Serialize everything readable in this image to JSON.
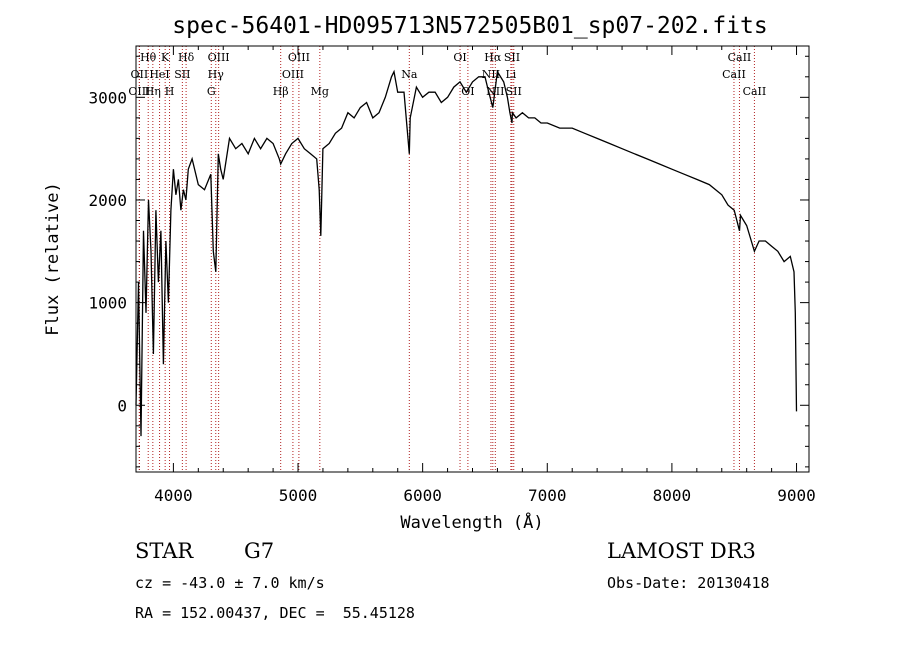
{
  "chart_data": {
    "type": "line",
    "title": "spec-56401-HD095713N572505B01_sp07-202.fits",
    "xlabel": "Wavelength (Å)",
    "ylabel": "Flux (relative)",
    "xlim": [
      3700,
      9100
    ],
    "ylim": [
      -650,
      3500
    ],
    "xticks": [
      4000,
      5000,
      6000,
      7000,
      8000,
      9000
    ],
    "yticks": [
      0,
      1000,
      2000,
      3000
    ],
    "series": [
      {
        "x": [
          3700,
          3720,
          3740,
          3760,
          3780,
          3800,
          3820,
          3840,
          3860,
          3880,
          3900,
          3920,
          3940,
          3960,
          3980,
          4000,
          4020,
          4040,
          4060,
          4080,
          4100,
          4120,
          4150,
          4200,
          4250,
          4300,
          4320,
          4340,
          4360,
          4380,
          4400,
          4450,
          4500,
          4550,
          4600,
          4650,
          4700,
          4750,
          4800,
          4850,
          4861,
          4900,
          4950,
          5000,
          5050,
          5100,
          5150,
          5170,
          5183,
          5200,
          5250,
          5300,
          5350,
          5400,
          5450,
          5500,
          5550,
          5600,
          5650,
          5700,
          5750,
          5770,
          5800,
          5850,
          5893,
          5900,
          5950,
          6000,
          6050,
          6100,
          6150,
          6200,
          6250,
          6300,
          6350,
          6400,
          6450,
          6500,
          6520,
          6563,
          6600,
          6650,
          6680,
          6700,
          6717,
          6720,
          6750,
          6800,
          6850,
          6900,
          6950,
          7000,
          7100,
          7200,
          7300,
          7400,
          7500,
          7600,
          7700,
          7800,
          7900,
          8000,
          8100,
          8200,
          8300,
          8400,
          8450,
          8500,
          8542,
          8550,
          8600,
          8662,
          8700,
          8750,
          8800,
          8850,
          8900,
          8950,
          8980,
          8990,
          9000
        ],
        "y": [
          0,
          1200,
          -300,
          1700,
          900,
          2000,
          1500,
          500,
          1900,
          1200,
          1700,
          400,
          1600,
          1000,
          1900,
          2300,
          2050,
          2200,
          1900,
          2100,
          2000,
          2300,
          2400,
          2150,
          2100,
          2250,
          1500,
          1300,
          2450,
          2300,
          2200,
          2600,
          2500,
          2550,
          2450,
          2600,
          2500,
          2600,
          2550,
          2400,
          2350,
          2450,
          2550,
          2600,
          2500,
          2450,
          2400,
          2100,
          1650,
          2500,
          2550,
          2650,
          2700,
          2850,
          2800,
          2900,
          2950,
          2800,
          2850,
          3000,
          3200,
          3250,
          3050,
          3050,
          2450,
          2800,
          3100,
          3000,
          3050,
          3050,
          2950,
          3000,
          3100,
          3150,
          3050,
          3150,
          3200,
          3200,
          3100,
          2900,
          3250,
          3150,
          3000,
          2850,
          2750,
          2850,
          2800,
          2850,
          2800,
          2800,
          2750,
          2750,
          2700,
          2700,
          2650,
          2600,
          2550,
          2500,
          2450,
          2400,
          2350,
          2300,
          2250,
          2200,
          2150,
          2050,
          1950,
          1900,
          1700,
          1850,
          1750,
          1500,
          1600,
          1600,
          1550,
          1500,
          1400,
          1450,
          1300,
          900,
          -60
        ]
      }
    ],
    "lines": [
      {
        "name": "Hθ",
        "wl": 3798,
        "row": 0
      },
      {
        "name": "OII",
        "wl": 3727,
        "row": 1
      },
      {
        "name": "OIII",
        "wl": 3727,
        "row": 2
      },
      {
        "name": "K",
        "wl": 3934,
        "row": 0
      },
      {
        "name": "H",
        "wl": 3969,
        "row": 2
      },
      {
        "name": "HeI",
        "wl": 3889,
        "row": 1
      },
      {
        "name": "SII",
        "wl": 4072,
        "row": 1
      },
      {
        "name": "Hη",
        "wl": 3835,
        "row": 2
      },
      {
        "name": "Hδ",
        "wl": 4102,
        "row": 0
      },
      {
        "name": "OIII",
        "wl": 4363,
        "row": 0
      },
      {
        "name": "Hγ",
        "wl": 4340,
        "row": 1
      },
      {
        "name": "G",
        "wl": 4304,
        "row": 2
      },
      {
        "name": "Hβ",
        "wl": 4861,
        "row": 2
      },
      {
        "name": "OIII",
        "wl": 5007,
        "row": 0
      },
      {
        "name": "OIII",
        "wl": 4959,
        "row": 1
      },
      {
        "name": "Mg",
        "wl": 5175,
        "row": 2
      },
      {
        "name": "Na",
        "wl": 5893,
        "row": 1
      },
      {
        "name": "OI",
        "wl": 6300,
        "row": 0
      },
      {
        "name": "OI",
        "wl": 6363,
        "row": 2
      },
      {
        "name": "Hα",
        "wl": 6563,
        "row": 0
      },
      {
        "name": "NII",
        "wl": 6548,
        "row": 1
      },
      {
        "name": "NII",
        "wl": 6583,
        "row": 2
      },
      {
        "name": "SII",
        "wl": 6717,
        "row": 0
      },
      {
        "name": "Li",
        "wl": 6708,
        "row": 1
      },
      {
        "name": "SII",
        "wl": 6731,
        "row": 2
      },
      {
        "name": "CaII",
        "wl": 8542,
        "row": 0
      },
      {
        "name": "CaII",
        "wl": 8498,
        "row": 1
      },
      {
        "name": "CaII",
        "wl": 8662,
        "row": 2
      }
    ],
    "grid": false,
    "line_color": "#000000",
    "marker_color": "#b22222"
  },
  "footer": {
    "object_class": "STAR",
    "subclass": "G7",
    "survey": "LAMOST DR3",
    "redshift": "cz = -43.0 ± 7.0 km/s",
    "obs_date": "Obs-Date: 20130418",
    "coords": "RA = 152.00437, DEC =  55.45128"
  }
}
